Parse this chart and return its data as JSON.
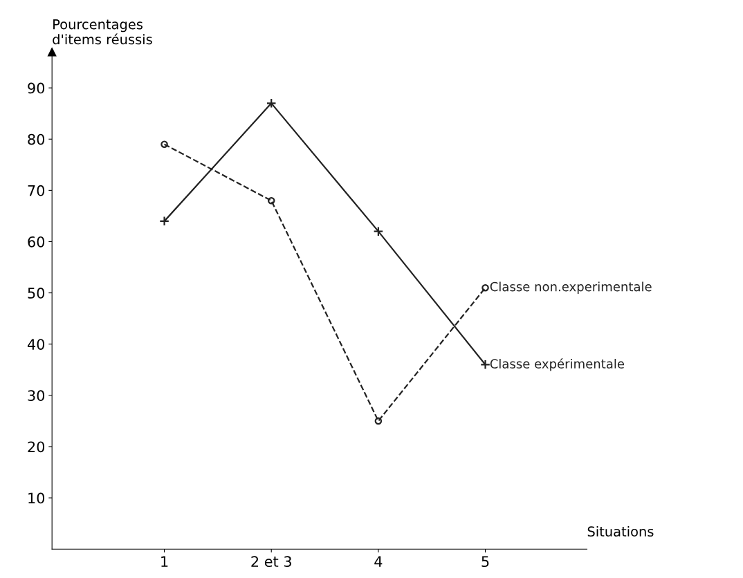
{
  "chart_data": {
    "type": "line",
    "ylabel": "Pourcentages\nd'items réussis",
    "xlabel": "Situations",
    "categories": [
      "1",
      "2 et 3",
      "4",
      "5"
    ],
    "series": [
      {
        "name": "Classe non.experimentale",
        "color": "#222222",
        "values": [
          79,
          68,
          25,
          51
        ],
        "marker": "circle",
        "line_style": "dashed"
      },
      {
        "name": "Classe expérimentale",
        "color": "#222222",
        "values": [
          64,
          87,
          62,
          36
        ],
        "marker": "cross",
        "line_style": "solid"
      }
    ],
    "ylim": [
      0,
      97
    ],
    "yticks": [
      10,
      20,
      30,
      40,
      50,
      60,
      70,
      80,
      90
    ],
    "grid": false,
    "legend": false
  }
}
